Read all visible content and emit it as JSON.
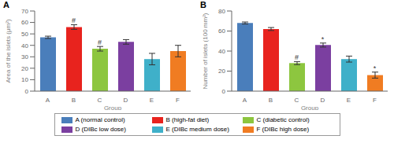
{
  "chart_data": [
    {
      "type": "bar",
      "title": "A",
      "x_label": "Group",
      "y_label": "Area of the islets (μm²)",
      "categories": [
        "A",
        "B",
        "C",
        "D",
        "E",
        "F"
      ],
      "values": [
        47,
        56,
        37,
        43,
        28,
        35
      ],
      "error": [
        1,
        2,
        2,
        2,
        5,
        5
      ],
      "annotations": [
        null,
        "#",
        "#",
        null,
        null,
        null
      ],
      "colors": [
        "#4a7ebb",
        "#e8231e",
        "#8dc63f",
        "#7b3fa0",
        "#3fb0c9",
        "#f07c22"
      ],
      "ylim": [
        0,
        70
      ],
      "yticks": [
        0,
        10,
        20,
        30,
        40,
        50,
        60,
        70
      ],
      "grid": false
    },
    {
      "type": "bar",
      "title": "B",
      "x_label": "Group",
      "y_label": "Number of islets (100 mm²)",
      "categories": [
        "A",
        "B",
        "C",
        "D",
        "E",
        "F"
      ],
      "values": [
        68,
        62,
        28,
        46,
        32,
        16
      ],
      "error": [
        1,
        1.5,
        1.5,
        2,
        3,
        3
      ],
      "annotations": [
        null,
        null,
        "#",
        "*",
        null,
        "*"
      ],
      "colors": [
        "#4a7ebb",
        "#e8231e",
        "#8dc63f",
        "#7b3fa0",
        "#3fb0c9",
        "#f07c22"
      ],
      "ylim": [
        0,
        80
      ],
      "yticks": [
        0,
        10,
        20,
        30,
        40,
        50,
        60,
        70,
        80
      ],
      "grid": false
    }
  ],
  "legend_entries": [
    "A (normal control)",
    "B (high-fat diet)",
    "C (diabetic control)",
    "D (DIBc low dose)",
    "E (DIBc medium dose)",
    "F (DIBc high dose)"
  ]
}
